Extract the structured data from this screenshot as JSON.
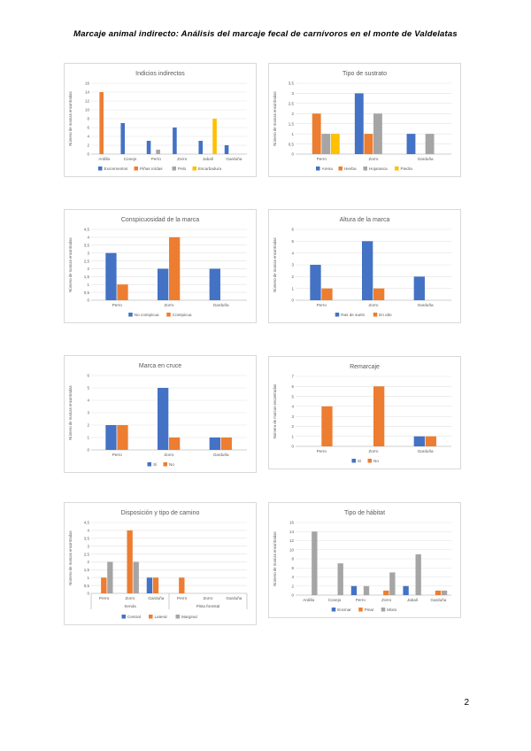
{
  "page": {
    "title": "Marcaje animal indirecto: Análisis del marcaje fecal de carnívoros en el monte de Valdelatas",
    "page_number": "2"
  },
  "palette": {
    "blue": "#4472C4",
    "orange": "#ED7D31",
    "gray": "#A5A5A5",
    "yellow": "#FFC000"
  },
  "ylabel": "Número de marcas encontradas",
  "chart_data": [
    {
      "type": "bar",
      "title": "Indicios indirectos",
      "ylabel": "Número de marcas encontradas",
      "categories": [
        "Ardilla",
        "Conejo",
        "Perro",
        "Zorro",
        "Jabalí",
        "Garduña"
      ],
      "series": [
        {
          "name": "Excrementos",
          "color": "blue",
          "values": [
            0,
            7,
            3,
            6,
            3,
            2
          ]
        },
        {
          "name": "Piñas roídas",
          "color": "orange",
          "values": [
            14,
            0,
            0,
            0,
            0,
            0
          ]
        },
        {
          "name": "Pelo",
          "color": "gray",
          "values": [
            0,
            0,
            1,
            0,
            0,
            0
          ]
        },
        {
          "name": "Escarbadura",
          "color": "yellow",
          "values": [
            0,
            0,
            0,
            0,
            8,
            0
          ]
        }
      ],
      "ylim": [
        0,
        16
      ],
      "ytick_step": 2,
      "legend_position": "bottom",
      "grid": true
    },
    {
      "type": "bar",
      "title": "Tipo de sustrato",
      "ylabel": "Número de marcas encontradas",
      "categories": [
        "Perro",
        "Zorro",
        "Garduña"
      ],
      "series": [
        {
          "name": "Arena",
          "color": "blue",
          "values": [
            0,
            3,
            1
          ]
        },
        {
          "name": "Hierba",
          "color": "orange",
          "values": [
            2,
            1,
            0
          ]
        },
        {
          "name": "Hojarasca",
          "color": "gray",
          "values": [
            1,
            2,
            1
          ]
        },
        {
          "name": "Piedra",
          "color": "yellow",
          "values": [
            1,
            0,
            0
          ]
        }
      ],
      "ylim": [
        0,
        3.5
      ],
      "ytick_step": 0.5,
      "legend_position": "bottom",
      "grid": true
    },
    {
      "type": "bar",
      "title": "Conspicuosidad de la marca",
      "ylabel": "Número de marcas encontradas",
      "categories": [
        "Perro",
        "Zorro",
        "Garduña"
      ],
      "series": [
        {
          "name": "No conspicua",
          "color": "blue",
          "values": [
            3,
            2,
            2
          ]
        },
        {
          "name": "Conspicua",
          "color": "orange",
          "values": [
            1,
            4,
            0
          ]
        }
      ],
      "ylim": [
        0,
        4.5
      ],
      "ytick_step": 0.5,
      "legend_position": "bottom",
      "grid": true
    },
    {
      "type": "bar",
      "title": "Altura de la marca",
      "ylabel": "Número de marcas encontradas",
      "categories": [
        "Perro",
        "Zorro",
        "Garduña"
      ],
      "series": [
        {
          "name": "Ras de suelo",
          "color": "blue",
          "values": [
            3,
            5,
            2
          ]
        },
        {
          "name": "En alto",
          "color": "orange",
          "values": [
            1,
            1,
            0
          ]
        }
      ],
      "ylim": [
        0,
        6
      ],
      "ytick_step": 1,
      "legend_position": "bottom",
      "grid": true
    },
    {
      "type": "bar",
      "title": "Marca en cruce",
      "ylabel": "Número de marcas encontradas",
      "categories": [
        "Perro",
        "Zorro",
        "Garduña"
      ],
      "series": [
        {
          "name": "Sí",
          "color": "blue",
          "values": [
            2,
            5,
            1
          ]
        },
        {
          "name": "No",
          "color": "orange",
          "values": [
            2,
            1,
            1
          ]
        }
      ],
      "ylim": [
        0,
        6
      ],
      "ytick_step": 1,
      "legend_position": "bottom",
      "grid": true
    },
    {
      "type": "bar",
      "title": "Remarcaje",
      "ylabel": "Número de marcas encontradas",
      "categories": [
        "Perro",
        "Zorro",
        "Garduña"
      ],
      "series": [
        {
          "name": "Sí",
          "color": "blue",
          "values": [
            0,
            0,
            1
          ]
        },
        {
          "name": "No",
          "color": "orange",
          "values": [
            4,
            6,
            1
          ]
        }
      ],
      "ylim": [
        0,
        7
      ],
      "ytick_step": 1,
      "legend_position": "bottom",
      "grid": true
    },
    {
      "type": "bar",
      "title": "Disposición y tipo de camino",
      "ylabel": "Número de marcas encontradas",
      "categories": [
        "Perro",
        "Zorro",
        "Garduña",
        "Perro",
        "Zorro",
        "Garduña"
      ],
      "groups": [
        {
          "label": "Senda",
          "span": 3
        },
        {
          "label": "Pista forestal",
          "span": 3
        }
      ],
      "series": [
        {
          "name": "Central",
          "color": "blue",
          "values": [
            0,
            0,
            1,
            0,
            0,
            0
          ]
        },
        {
          "name": "Lateral",
          "color": "orange",
          "values": [
            1,
            4,
            1,
            1,
            0,
            0
          ]
        },
        {
          "name": "Marginal",
          "color": "gray",
          "values": [
            2,
            2,
            0,
            0,
            0,
            0
          ]
        }
      ],
      "ylim": [
        0,
        4.5
      ],
      "ytick_step": 0.5,
      "legend_position": "bottom",
      "grid": true
    },
    {
      "type": "bar",
      "title": "Tipo de hábitat",
      "ylabel": "Número de marcas encontradas",
      "categories": [
        "Ardilla",
        "Conejo",
        "Perro",
        "Zorro",
        "Jabalí",
        "Garduña"
      ],
      "series": [
        {
          "name": "Encinar",
          "color": "blue",
          "values": [
            0,
            0,
            2,
            0,
            2,
            0
          ]
        },
        {
          "name": "Pinar",
          "color": "orange",
          "values": [
            0,
            0,
            0,
            1,
            0,
            1
          ]
        },
        {
          "name": "Mixto",
          "color": "gray",
          "values": [
            14,
            7,
            2,
            5,
            9,
            1
          ]
        }
      ],
      "ylim": [
        0,
        16
      ],
      "ytick_step": 2,
      "legend_position": "bottom",
      "grid": true
    }
  ]
}
